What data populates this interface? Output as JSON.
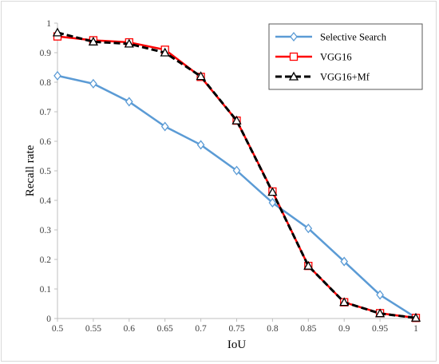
{
  "chart_data": {
    "type": "line",
    "title": "",
    "xlabel": "IoU",
    "ylabel": "Recall rate",
    "xlim": [
      0.5,
      1.0
    ],
    "ylim": [
      0,
      1
    ],
    "x_ticks": [
      "0.5",
      "0.55",
      "0.6",
      "0.65",
      "0.7",
      "0.75",
      "0.8",
      "0.85",
      "0.9",
      "0.95",
      "1"
    ],
    "y_ticks": [
      "0",
      "0.1",
      "0.2",
      "0.3",
      "0.4",
      "0.5",
      "0.6",
      "0.7",
      "0.8",
      "0.9",
      "1"
    ],
    "grid": false,
    "legend_position": "top-right",
    "x": [
      0.5,
      0.55,
      0.6,
      0.65,
      0.7,
      0.75,
      0.8,
      0.85,
      0.9,
      0.95,
      1.0
    ],
    "series": [
      {
        "name": "Selective Search",
        "color": "#5b9bd5",
        "marker": "diamond",
        "values": [
          0.822,
          0.795,
          0.734,
          0.65,
          0.588,
          0.501,
          0.392,
          0.305,
          0.193,
          0.08,
          0.003
        ]
      },
      {
        "name": "VGG16",
        "color": "#ff0000",
        "marker": "square",
        "values": [
          0.955,
          0.942,
          0.935,
          0.91,
          0.818,
          0.67,
          0.43,
          0.178,
          0.055,
          0.018,
          0.002
        ]
      },
      {
        "name": "VGG16+Mf",
        "color": "#000000",
        "marker": "triangle",
        "dashed": true,
        "values": [
          0.968,
          0.937,
          0.93,
          0.9,
          0.82,
          0.67,
          0.428,
          0.178,
          0.055,
          0.017,
          0.002
        ]
      }
    ]
  }
}
